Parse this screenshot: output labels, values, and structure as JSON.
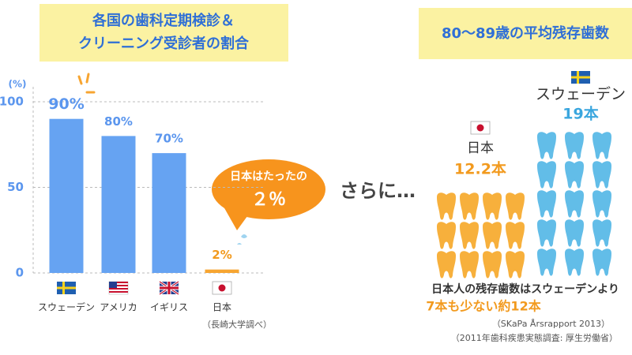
{
  "chart_data": [
    {
      "type": "bar",
      "title": [
        "各国の歯科定期検診＆",
        "クリーニング受診者の割合"
      ],
      "y_label": "(%)",
      "ylim": [
        0,
        100
      ],
      "yticks": [
        0,
        50,
        100
      ],
      "grid": true,
      "categories": [
        "スウェーデン",
        "アメリカ",
        "イギリス",
        "日本"
      ],
      "values": [
        90,
        80,
        70,
        2
      ],
      "value_labels": [
        "90%",
        "80%",
        "70%",
        "2%"
      ],
      "colors": [
        "#66a3f2",
        "#66a3f2",
        "#66a3f2",
        "#f7a531"
      ],
      "label_colors": [
        "#5b96ee",
        "#5b96ee",
        "#5b96ee",
        "#f29a1e"
      ],
      "callout": [
        "日本はたったの",
        "２％"
      ],
      "source": "（長崎大学調べ）",
      "connector": "さらに…"
    },
    {
      "type": "pictograph",
      "title": "80〜89歳の平均残存歯数",
      "categories": [
        "日本",
        "スウェーデン"
      ],
      "values": [
        12.2,
        19
      ],
      "value_labels": [
        "12.2本",
        "19本"
      ],
      "colors": [
        "#f7b03c",
        "#62bde8"
      ],
      "label_colors": [
        "#f29a1e",
        "#3aa6de"
      ],
      "note": [
        "日本人の残存歯数はスウェーデンより",
        "7本も少ない約12本"
      ],
      "sources": [
        "（SKaPa Årsrapport 2013）",
        "（2011年歯科疾患実態調査: 厚生労働省）"
      ]
    }
  ]
}
